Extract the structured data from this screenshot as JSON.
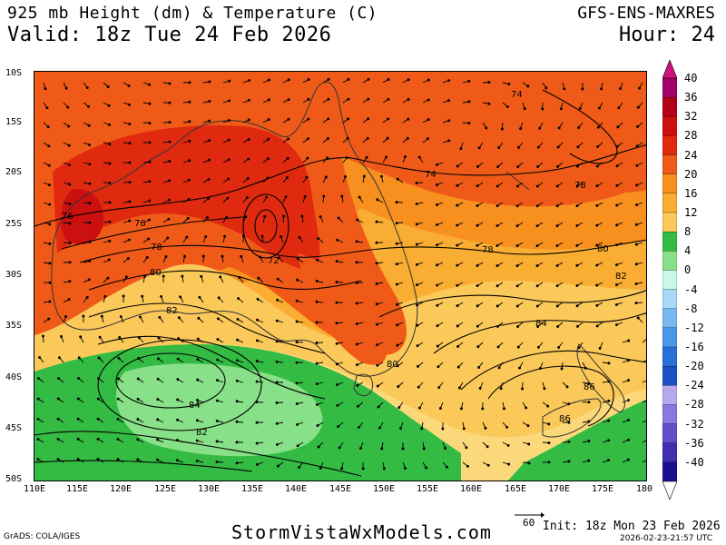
{
  "header": {
    "title": "925 mb Height (dm) & Temperature (C)",
    "valid": "Valid: 18z Tue 24 Feb 2026",
    "model": "GFS-ENS-MAXRES",
    "hour": "Hour: 24"
  },
  "axes": {
    "lat_labels": [
      "10S",
      "15S",
      "20S",
      "25S",
      "30S",
      "35S",
      "40S",
      "45S",
      "50S"
    ],
    "lon_labels": [
      "110E",
      "115E",
      "120E",
      "125E",
      "130E",
      "135E",
      "140E",
      "145E",
      "150E",
      "155E",
      "160E",
      "165E",
      "170E",
      "175E",
      "180"
    ]
  },
  "contours": [
    "74",
    "74",
    "76",
    "76",
    "78",
    "78",
    "78",
    "80",
    "80",
    "80",
    "82",
    "82",
    "82",
    "84",
    "84",
    "86",
    "86",
    "72"
  ],
  "colorbar": {
    "labels": [
      "40",
      "36",
      "32",
      "28",
      "24",
      "20",
      "16",
      "12",
      "8",
      "4",
      "0",
      "-4",
      "-8",
      "-12",
      "-16",
      "-20",
      "-24",
      "-28",
      "-32",
      "-36",
      "-40"
    ],
    "colors": [
      "#a0006a",
      "#b30016",
      "#cc1010",
      "#e02a10",
      "#f05a18",
      "#f7901f",
      "#f9ad32",
      "#fbc85a",
      "#33bb44",
      "#88e088",
      "#c8f8e8",
      "#a8d8f8",
      "#78b8f0",
      "#4898e8",
      "#2870d8",
      "#1a50c0",
      "#b8a8f0",
      "#8878e0",
      "#6050c8",
      "#4030b0",
      "#1c1090"
    ]
  },
  "footer": {
    "grads": "GrADS: COLA/IGES",
    "site": "StormVistaWxModels.com",
    "init": "Init: 18z Mon 23 Feb 2026",
    "stamp": "2026-02-23-21:57 UTC",
    "vector_scale": "60"
  }
}
